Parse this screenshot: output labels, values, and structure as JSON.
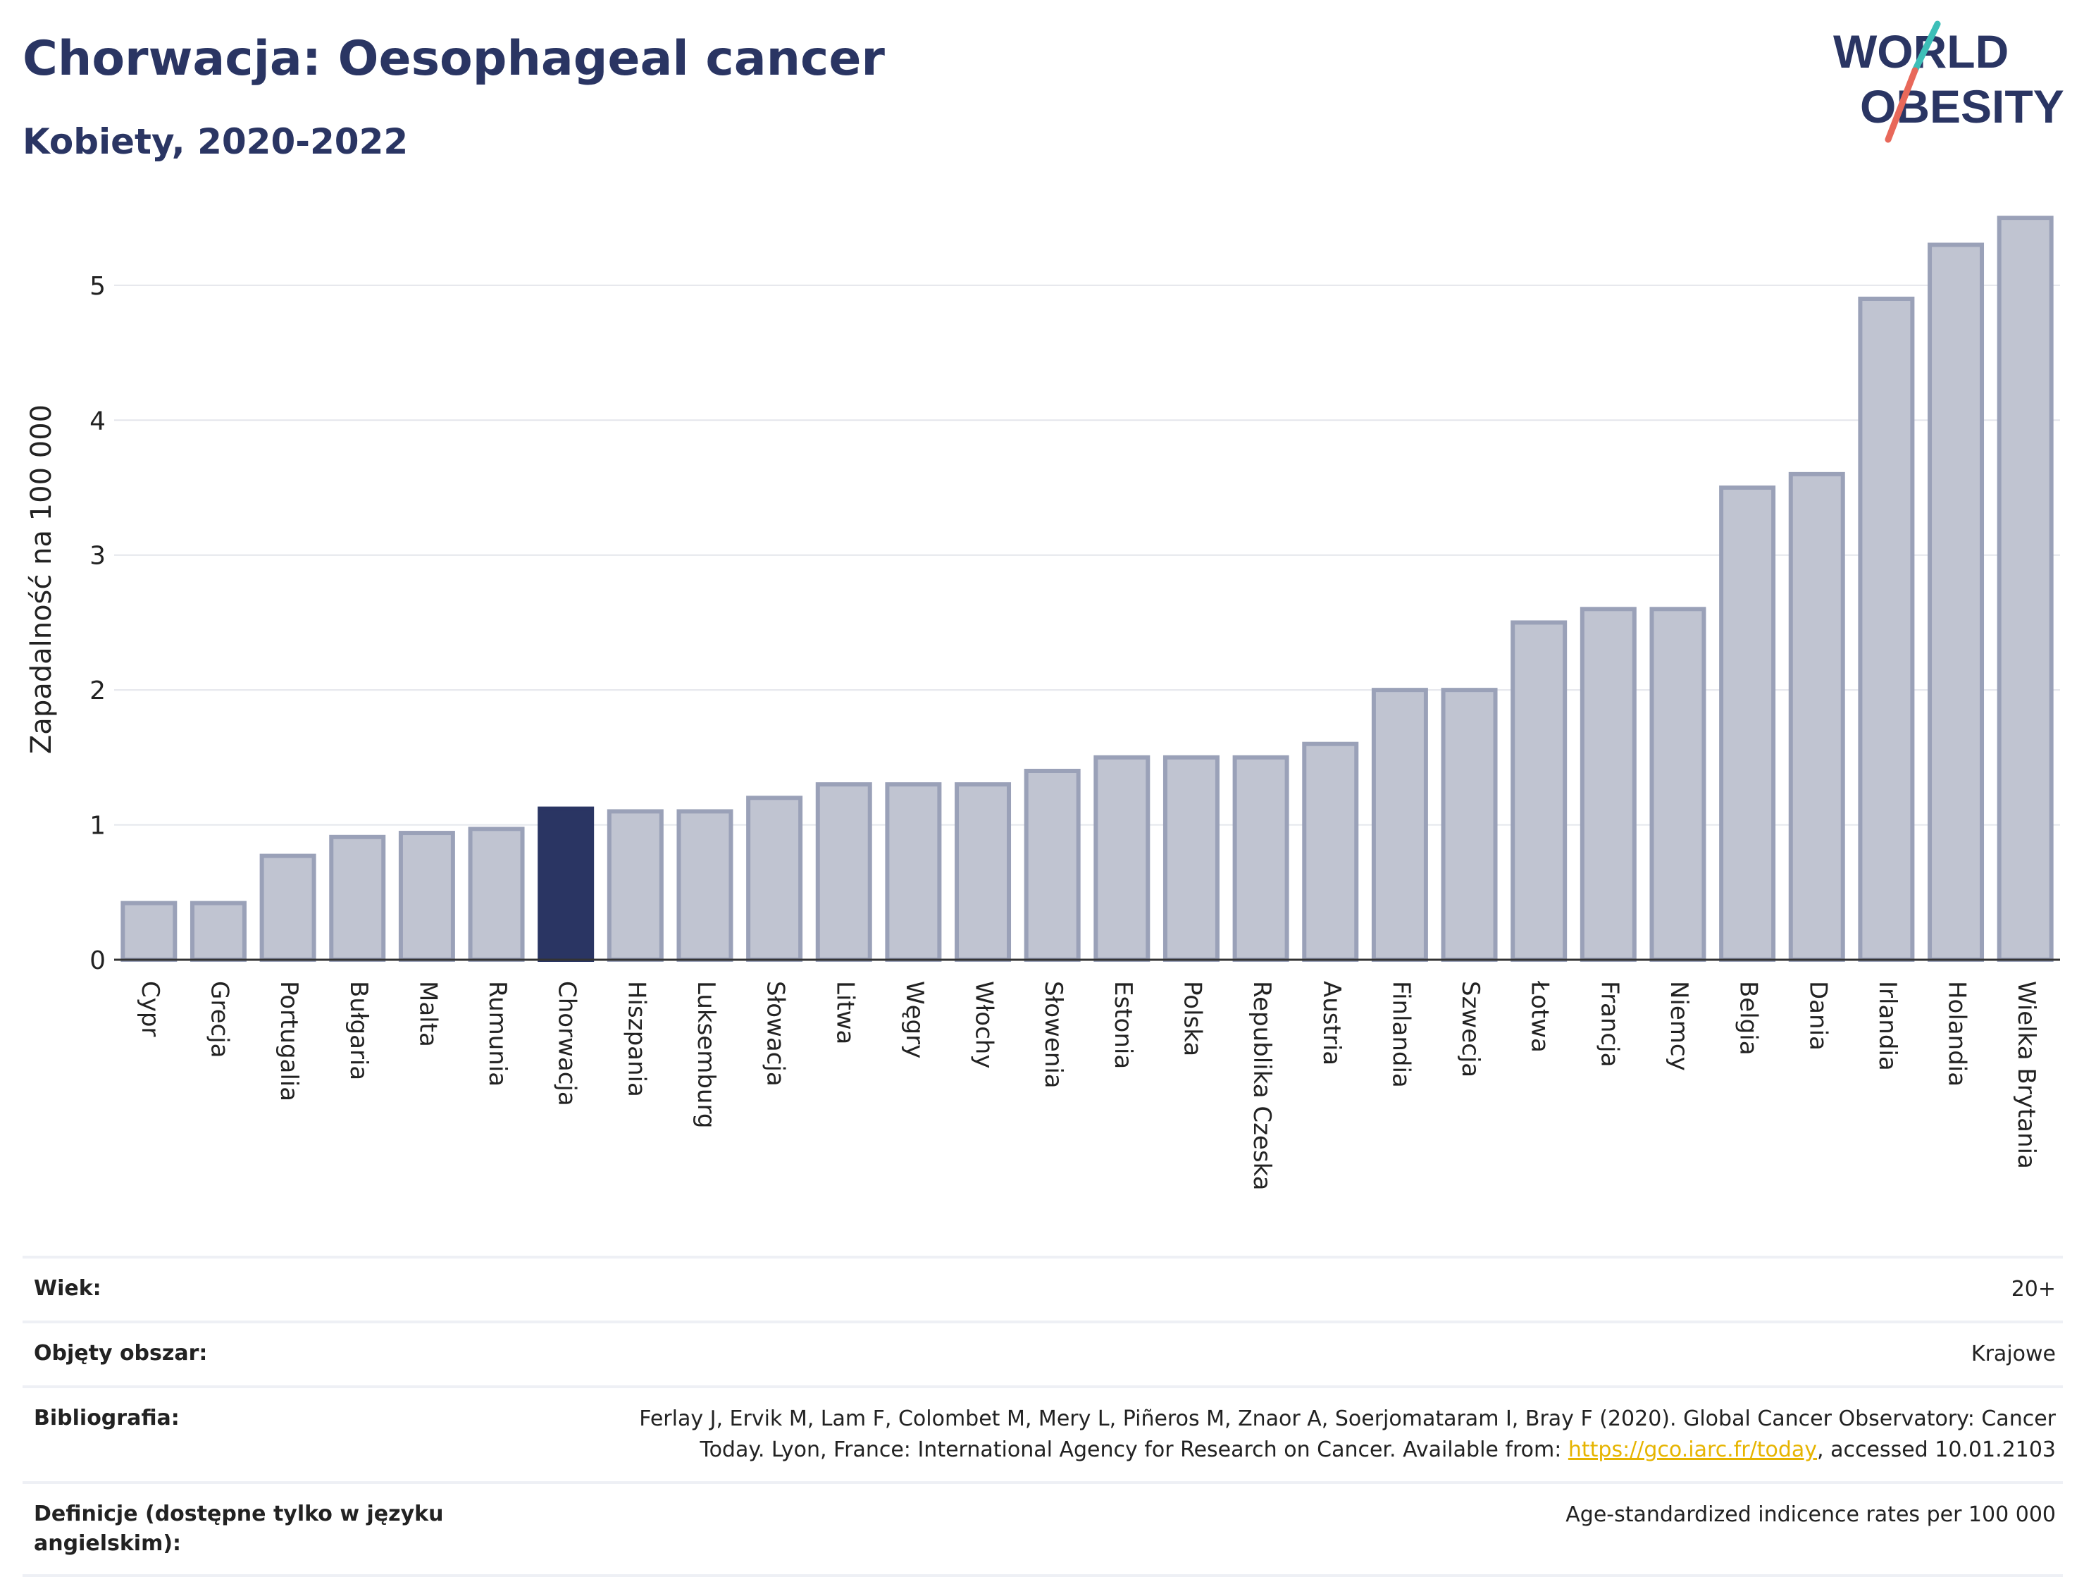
{
  "header": {
    "title": "Chorwacja: Oesophageal cancer",
    "subtitle": "Kobiety, 2020-2022"
  },
  "logo": {
    "line1": "WORLD",
    "line2": "OBESITY"
  },
  "colors": {
    "bar_fill": "#c0c4d1",
    "bar_stroke": "#9aa1b8",
    "highlight": "#2a3563",
    "title": "#2a3563",
    "logo_teal": "#3dbfb8",
    "logo_coral": "#e8685a",
    "link": "#e6b400"
  },
  "chart_data": {
    "type": "bar",
    "title": "",
    "xlabel": "",
    "ylabel": "Zapadalność na 100 000",
    "ylim": [
      0,
      5.6
    ],
    "yticks": [
      0,
      1,
      2,
      3,
      4,
      5
    ],
    "grid": true,
    "highlight": "Chorwacja",
    "categories": [
      "Cypr",
      "Grecja",
      "Portugalia",
      "Bułgaria",
      "Malta",
      "Rumunia",
      "Chorwacja",
      "Hiszpania",
      "Luksemburg",
      "Słowacja",
      "Litwa",
      "Węgry",
      "Włochy",
      "Słowenia",
      "Estonia",
      "Polska",
      "Republika Czeska",
      "Austria",
      "Finlandia",
      "Szwecja",
      "Łotwa",
      "Francja",
      "Niemcy",
      "Belgia",
      "Dania",
      "Irlandia",
      "Holandia",
      "Wielka Brytania"
    ],
    "values": [
      0.42,
      0.42,
      0.77,
      0.91,
      0.94,
      0.97,
      1.12,
      1.1,
      1.1,
      1.2,
      1.3,
      1.3,
      1.3,
      1.4,
      1.5,
      1.5,
      1.5,
      1.6,
      2.0,
      2.0,
      2.5,
      2.6,
      2.6,
      3.5,
      3.6,
      4.9,
      5.3,
      5.5
    ]
  },
  "meta": {
    "age_label": "Wiek:",
    "age_value": "20+",
    "area_label": "Objęty obszar:",
    "area_value": "Krajowe",
    "biblio_label": "Bibliografia:",
    "biblio_line1": "Ferlay J, Ervik M, Lam F, Colombet M, Mery L, Piñeros M, Znaor A, Soerjomataram I, Bray F (2020). Global Cancer Observatory: Cancer",
    "biblio_line2_pre": "Today. Lyon, France: International Agency for Research on Cancer. Available from: ",
    "biblio_link": "https://gco.iarc.fr/today",
    "biblio_line2_post": ", accessed 10.01.2103",
    "def_label": "Definicje (dostępne tylko w języku angielskim):",
    "def_value": "Age-standardized indicence rates per 100 000"
  }
}
